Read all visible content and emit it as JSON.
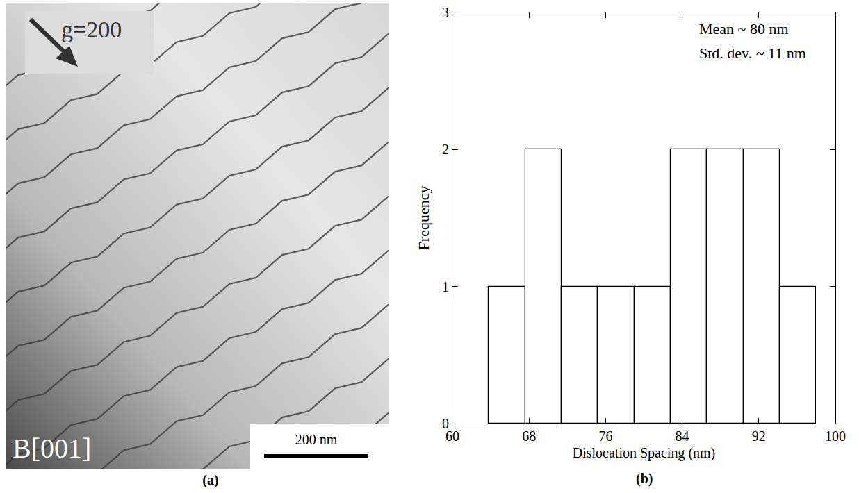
{
  "chart_data": {
    "type": "histogram",
    "panel_label": "(b)",
    "x_label": "Dislocation Spacing (nm)",
    "y_label": "Frequency",
    "bins": [
      63.8,
      67.6,
      71.4,
      75.2,
      79.0,
      82.8,
      86.6,
      90.4,
      94.2,
      98.0
    ],
    "values": [
      1,
      2,
      1,
      1,
      1,
      2,
      2,
      2,
      1
    ],
    "color": "#ffffff",
    "xlim": [
      60,
      100
    ],
    "xticks": [
      60,
      68,
      76,
      84,
      92,
      100
    ],
    "ylim": [
      0,
      3
    ],
    "yticks": [
      0,
      1,
      2,
      3
    ],
    "grid": false,
    "annotations": [
      "Mean ~ 80 nm",
      "Std. dev. ~ 11 nm"
    ]
  },
  "micrograph": {
    "panel_label": "(a)",
    "vector_label": "g=200",
    "zone_axis": "B[001]",
    "scale_bar": "200 nm"
  }
}
